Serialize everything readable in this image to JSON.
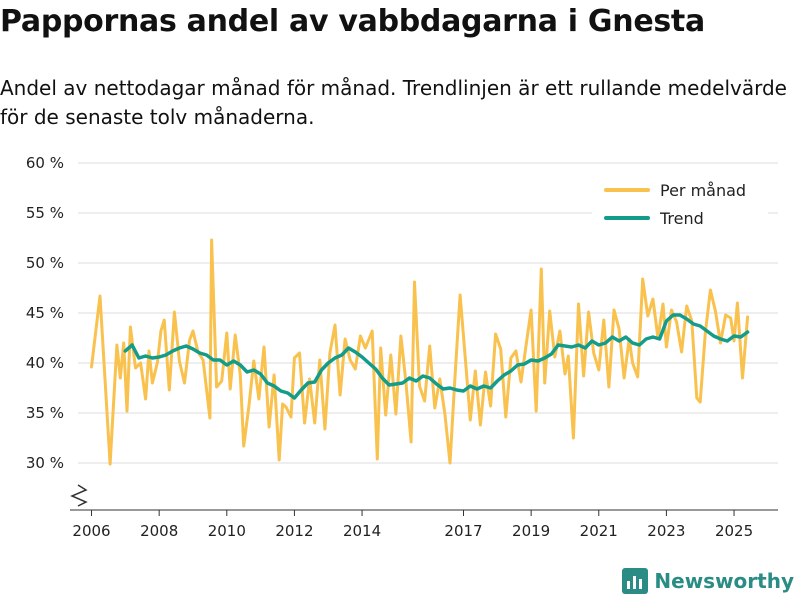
{
  "header": {
    "title": "Pappornas andel av vabbdagarna i Gnesta",
    "subtitle": "Andel av nettodagar månad för månad. Trendlinjen är ett rullande medelvärde för de senaste tolv månaderna."
  },
  "brand": {
    "name": "Newsworthy",
    "icon": "newsworthy-logo-icon"
  },
  "colors": {
    "monthly": "#f9c14e",
    "trend": "#139c8a",
    "grid": "#dddddd",
    "brand": "#2a8c84"
  },
  "chart_data": {
    "type": "line",
    "title": "Pappornas andel av vabbdagarna i Gnesta",
    "xlabel": "",
    "ylabel": "",
    "ylim": [
      25.5,
      61
    ],
    "y_ticks": [
      30,
      35,
      40,
      45,
      50,
      55,
      60
    ],
    "y_tick_labels": [
      "30 %",
      "35 %",
      "40 %",
      "45 %",
      "50 %",
      "55 %",
      "60 %"
    ],
    "y_axis_break": true,
    "x_range": [
      2005.6,
      2026.3
    ],
    "x_ticks": [
      2006,
      2008,
      2010,
      2012,
      2014,
      2017,
      2019,
      2021,
      2023,
      2025
    ],
    "x_tick_labels": [
      "2006",
      "2008",
      "2010",
      "2012",
      "2014",
      "2017",
      "2019",
      "2021",
      "2023",
      "2025"
    ],
    "grid": true,
    "legend": {
      "position": "top-right",
      "entries": [
        "Per månad",
        "Trend"
      ]
    },
    "series": [
      {
        "name": "Per månad",
        "x": [
          2006.0,
          2006.25,
          2006.55,
          2006.75,
          2006.85,
          2006.95,
          2007.05,
          2007.15,
          2007.3,
          2007.45,
          2007.6,
          2007.7,
          2007.8,
          2007.95,
          2008.05,
          2008.15,
          2008.3,
          2008.45,
          2008.6,
          2008.75,
          2008.9,
          2009.0,
          2009.15,
          2009.3,
          2009.5,
          2009.55,
          2009.7,
          2009.85,
          2010.0,
          2010.1,
          2010.25,
          2010.4,
          2010.5,
          2010.65,
          2010.8,
          2010.95,
          2011.1,
          2011.25,
          2011.4,
          2011.55,
          2011.65,
          2011.75,
          2011.9,
          2012.0,
          2012.15,
          2012.3,
          2012.45,
          2012.6,
          2012.75,
          2012.9,
          2013.05,
          2013.2,
          2013.35,
          2013.5,
          2013.65,
          2013.8,
          2013.95,
          2014.1,
          2014.3,
          2014.45,
          2014.55,
          2014.7,
          2014.85,
          2015.0,
          2015.15,
          2015.3,
          2015.45,
          2015.55,
          2015.7,
          2015.85,
          2016.0,
          2016.15,
          2016.3,
          2016.45,
          2016.6,
          2016.75,
          2016.9,
          2017.05,
          2017.2,
          2017.35,
          2017.5,
          2017.65,
          2017.8,
          2017.95,
          2018.1,
          2018.25,
          2018.4,
          2018.55,
          2018.7,
          2018.85,
          2019.0,
          2019.15,
          2019.3,
          2019.4,
          2019.55,
          2019.7,
          2019.85,
          2020.0,
          2020.1,
          2020.25,
          2020.4,
          2020.55,
          2020.7,
          2020.85,
          2021.0,
          2021.15,
          2021.3,
          2021.45,
          2021.6,
          2021.75,
          2021.9,
          2022.0,
          2022.15,
          2022.3,
          2022.45,
          2022.6,
          2022.75,
          2022.9,
          2023.0,
          2023.15,
          2023.3,
          2023.45,
          2023.6,
          2023.75,
          2023.9,
          2024.0,
          2024.15,
          2024.3,
          2024.45,
          2024.6,
          2024.75,
          2024.9,
          2025.0,
          2025.1,
          2025.25,
          2025.4
        ],
        "values": [
          39.6,
          46.7,
          29.9,
          41.8,
          38.5,
          42.0,
          35.2,
          43.6,
          39.5,
          40.0,
          36.4,
          41.2,
          38.0,
          40.1,
          43.2,
          44.3,
          37.3,
          45.1,
          40.2,
          38.0,
          42.3,
          43.2,
          41.1,
          40.3,
          34.5,
          52.3,
          37.6,
          38.2,
          43.0,
          37.4,
          42.8,
          38.8,
          31.7,
          35.6,
          40.2,
          36.4,
          41.6,
          33.6,
          38.8,
          30.3,
          35.9,
          35.6,
          34.6,
          40.5,
          41.0,
          34.0,
          38.4,
          34.0,
          40.3,
          33.4,
          41.0,
          43.8,
          36.8,
          42.4,
          40.3,
          39.4,
          42.7,
          41.5,
          43.2,
          30.4,
          41.5,
          34.8,
          40.8,
          34.9,
          42.7,
          38.0,
          32.1,
          48.1,
          37.7,
          36.2,
          41.7,
          35.5,
          38.4,
          34.9,
          30.0,
          38.8,
          46.8,
          40.6,
          34.3,
          39.2,
          33.8,
          39.1,
          35.7,
          42.9,
          41.4,
          34.6,
          40.5,
          41.2,
          38.1,
          41.8,
          45.3,
          35.2,
          49.4,
          38.0,
          45.2,
          40.6,
          43.2,
          38.9,
          40.7,
          32.5,
          45.9,
          38.7,
          45.1,
          41.0,
          39.3,
          44.3,
          37.6,
          45.3,
          43.4,
          38.5,
          42.4,
          40.0,
          38.6,
          48.4,
          44.7,
          46.4,
          42.5,
          45.9,
          41.6,
          45.3,
          44.1,
          41.1,
          45.7,
          44.2,
          36.5,
          36.1,
          43.0,
          47.3,
          45.2,
          42.0,
          44.8,
          44.5,
          42.2,
          46.0,
          38.5,
          44.6
        ]
      },
      {
        "name": "Trend",
        "x": [
          2007.0,
          2007.2,
          2007.4,
          2007.6,
          2007.8,
          2008.0,
          2008.2,
          2008.4,
          2008.6,
          2008.8,
          2009.0,
          2009.2,
          2009.4,
          2009.6,
          2009.8,
          2010.0,
          2010.2,
          2010.4,
          2010.6,
          2010.8,
          2011.0,
          2011.2,
          2011.4,
          2011.6,
          2011.8,
          2012.0,
          2012.2,
          2012.4,
          2012.6,
          2012.8,
          2013.0,
          2013.2,
          2013.4,
          2013.6,
          2013.8,
          2014.0,
          2014.2,
          2014.4,
          2014.6,
          2014.8,
          2015.0,
          2015.2,
          2015.4,
          2015.6,
          2015.8,
          2016.0,
          2016.2,
          2016.4,
          2016.6,
          2016.8,
          2017.0,
          2017.2,
          2017.4,
          2017.6,
          2017.8,
          2018.0,
          2018.2,
          2018.4,
          2018.6,
          2018.8,
          2019.0,
          2019.2,
          2019.4,
          2019.6,
          2019.8,
          2020.0,
          2020.2,
          2020.4,
          2020.6,
          2020.8,
          2021.0,
          2021.2,
          2021.4,
          2021.6,
          2021.8,
          2022.0,
          2022.2,
          2022.4,
          2022.6,
          2022.8,
          2023.0,
          2023.2,
          2023.4,
          2023.6,
          2023.8,
          2024.0,
          2024.2,
          2024.4,
          2024.6,
          2024.8,
          2025.0,
          2025.2,
          2025.4
        ],
        "values": [
          41.2,
          41.8,
          40.5,
          40.7,
          40.5,
          40.6,
          40.8,
          41.2,
          41.5,
          41.7,
          41.4,
          41.0,
          40.8,
          40.3,
          40.3,
          39.8,
          40.2,
          39.8,
          39.1,
          39.3,
          38.9,
          38.0,
          37.7,
          37.2,
          37.0,
          36.5,
          37.3,
          38.0,
          38.1,
          39.3,
          40.0,
          40.5,
          40.8,
          41.5,
          41.1,
          40.6,
          40.0,
          39.4,
          38.5,
          37.8,
          37.9,
          38.0,
          38.5,
          38.2,
          38.7,
          38.5,
          37.9,
          37.4,
          37.5,
          37.3,
          37.2,
          37.7,
          37.4,
          37.7,
          37.5,
          38.2,
          38.8,
          39.2,
          39.8,
          39.9,
          40.3,
          40.2,
          40.5,
          40.9,
          41.8,
          41.7,
          41.6,
          41.8,
          41.5,
          42.2,
          41.8,
          42.0,
          42.6,
          42.2,
          42.6,
          42.0,
          41.8,
          42.4,
          42.6,
          42.4,
          44.2,
          44.8,
          44.8,
          44.4,
          43.9,
          43.7,
          43.2,
          42.7,
          42.4,
          42.2,
          42.7,
          42.6,
          43.1
        ]
      }
    ]
  }
}
